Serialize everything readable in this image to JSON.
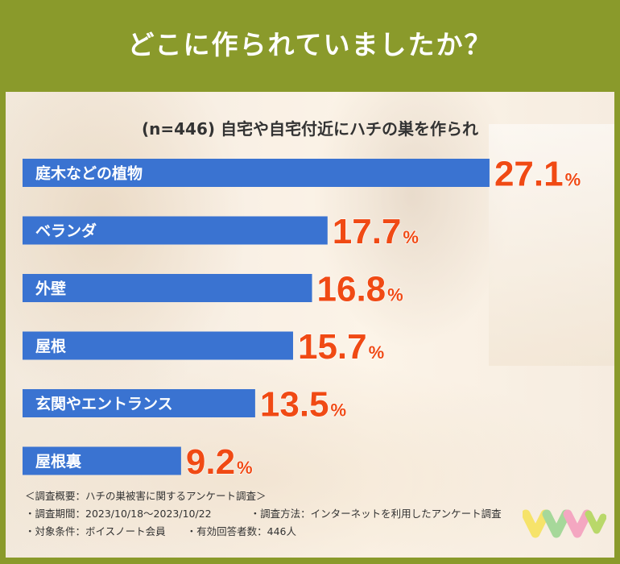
{
  "header": {
    "title": "どこに作られていましたか？"
  },
  "chart_data": {
    "type": "bar",
    "orientation": "horizontal",
    "title": "(n=446) 自宅や自宅付近にハチの巣を作られ",
    "categories": [
      "庭木などの植物",
      "ベランダ",
      "外壁",
      "屋根",
      "玄関やエントランス",
      "屋根裏"
    ],
    "values": [
      27.1,
      17.7,
      16.8,
      15.7,
      13.5,
      9.2
    ],
    "value_labels": [
      "27.1",
      "17.7",
      "16.8",
      "15.7",
      "13.5",
      "9.2"
    ],
    "unit": "%",
    "bar_color": "#3a73d1",
    "value_color": "#f04a14"
  },
  "notes": {
    "heading": "＜調査概要：ハチの巣被害に関するアンケート調査＞",
    "period": "・調査期間：2023/10/18〜2023/10/22",
    "method": "・調査方法：インターネットを利用したアンケート調査",
    "target": "・対象条件：ボイスノート会員",
    "responses": "・有効回答者数：446人"
  },
  "logo": {
    "icon": "stacked-pastel-v-logo",
    "colors": [
      "#f6e36a",
      "#a6d89a",
      "#f4a7c1",
      "#b9d86a"
    ]
  }
}
